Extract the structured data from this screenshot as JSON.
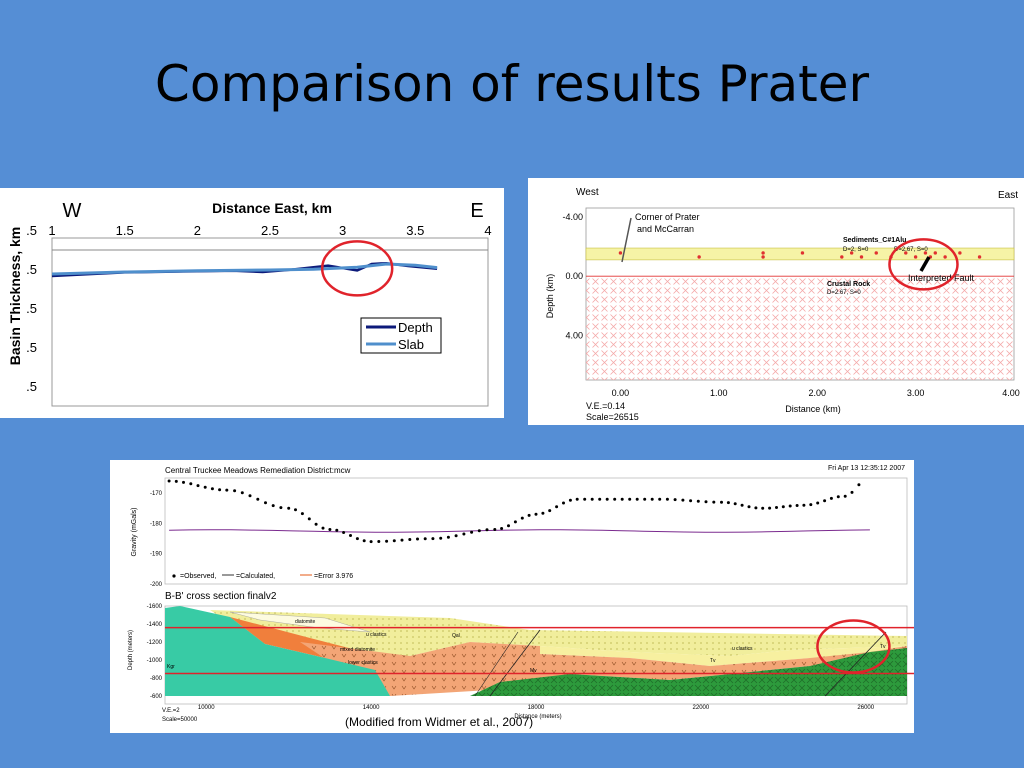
{
  "slide": {
    "title": "Comparison of results Prater"
  },
  "chart_data": [
    {
      "type": "line",
      "title": "Distance East, km",
      "xlabel": "Distance East, km",
      "ylabel": "Basin Thickness, km",
      "direction_left": "W",
      "direction_right": "E",
      "xlim": [
        1,
        4
      ],
      "x_ticks": [
        "1",
        "1.5",
        "2",
        "2.5",
        "3",
        "3.5",
        "4"
      ],
      "y_ticks": [
        ".5",
        ".5",
        ".5",
        ".5",
        ".5"
      ],
      "legend": "right",
      "series": [
        {
          "name": "Depth",
          "color": "#0c1a7a",
          "x": [
            1,
            1.5,
            2,
            2.25,
            2.45,
            2.65,
            2.9,
            3.1,
            3.2,
            3.3,
            3.45,
            3.65
          ],
          "y": [
            0.65,
            0.56,
            0.53,
            0.52,
            0.55,
            0.49,
            0.39,
            0.51,
            0.35,
            0.33,
            0.4,
            0.47
          ]
        },
        {
          "name": "Slab",
          "color": "#4f8fcc",
          "x": [
            1,
            1.5,
            2,
            2.5,
            2.8,
            3.1,
            3.3,
            3.5,
            3.65
          ],
          "y": [
            0.6,
            0.55,
            0.52,
            0.5,
            0.48,
            0.43,
            0.35,
            0.38,
            0.44
          ]
        }
      ],
      "highlight": {
        "x": 3.1,
        "y": 0.46
      }
    },
    {
      "type": "scatter",
      "direction_left": "West",
      "direction_right": "East",
      "xlabel": "Distance (km)",
      "ylabel": "Depth (km)",
      "xlim": [
        -0.35,
        4.0
      ],
      "ylim": [
        -4.6,
        7.0
      ],
      "x_ticks": [
        "0.00",
        "1.00",
        "2.00",
        "3.00",
        "4.00"
      ],
      "y_ticks": [
        "-4.00",
        "0.00",
        "4.00"
      ],
      "annotations": {
        "corner": [
          "Corner of Prater",
          "and McCarran"
        ],
        "sediments": "Sediments_C#1Alu",
        "sediments_params": "D=2, S=0",
        "fault_params": "D=2.67, S=0",
        "crustal": "Crustal Rock",
        "crustal_params": "D=2.67, S=0",
        "fault": "Interpreted Fault"
      },
      "footer": [
        "V.E.=0.14",
        "Scale=26515"
      ],
      "stations_x": [
        0.0,
        0.8,
        1.45,
        1.45,
        1.85,
        2.25,
        2.35,
        2.45,
        2.6,
        2.75,
        2.9,
        3.0,
        3.1,
        3.15,
        3.2,
        3.3,
        3.45,
        3.65
      ],
      "highlight": {
        "x": 3.08,
        "y": -0.8
      }
    },
    {
      "type": "line",
      "header": "Central Truckee Meadows Remediation District:mcw",
      "timestamp": "Fri Apr 13 12:35:12 2007",
      "ylabel": "Gravity (mGals)",
      "ylim": [
        -200,
        -165
      ],
      "y_ticks": [
        "-170",
        "-180",
        "-190",
        "-200"
      ],
      "legend_items": [
        "=Observed,",
        "=Calculated,",
        "=Error 3.976"
      ],
      "observed_x": [
        9100,
        10500,
        12000,
        13000,
        14000,
        15500,
        17000,
        18000,
        19000,
        21000,
        22500,
        23500,
        24500,
        25500,
        26000
      ],
      "observed_y": [
        -166,
        -169,
        -175,
        -182,
        -186,
        -185,
        -182,
        -177,
        -172,
        -172,
        -173,
        -175,
        -174,
        -171,
        -166
      ],
      "observed_color": "#000000",
      "calculated_color": "#7b2b8f",
      "error_color": "#e8743b",
      "section_title": "B-B' cross section finalv2",
      "section_ylabel": "Depth (meters)",
      "section_xlabel": "Distance (meters)",
      "section_y_ticks": [
        "-1600",
        "-1400",
        "-1200",
        "-1000",
        "-800",
        "-600"
      ],
      "section_x_ticks": [
        "10000",
        "14000",
        "18000",
        "22000",
        "26000"
      ],
      "section_xlim": [
        9000,
        27000
      ],
      "unit_labels": [
        "diatomite",
        "u clastics",
        "Qal",
        "mixed diatomite",
        "lower clastics",
        "Kgr",
        "Mv",
        "u clastics",
        "Tv",
        "Tv"
      ],
      "footer": [
        "V.E.=2",
        "Scale=50000"
      ],
      "caption": "(Modified from Widmer et al., 2007)",
      "reference_lines_depth": [
        -1360,
        -850
      ],
      "highlight": {
        "x": 25700,
        "y": -1150
      }
    }
  ]
}
